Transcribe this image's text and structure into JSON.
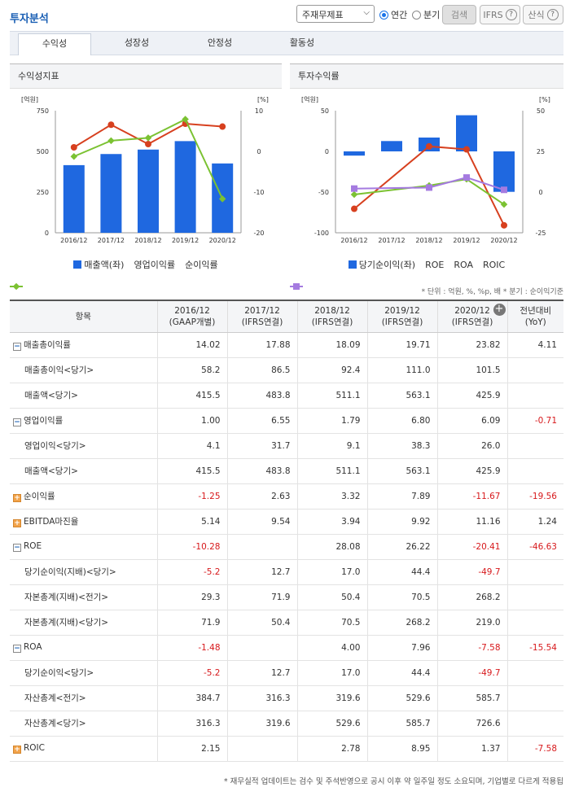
{
  "header": {
    "title": "투자분석",
    "select_value": "주재무제표",
    "radio_annual": "연간",
    "radio_quarter": "분기",
    "search_label": "검색",
    "ifrs_label": "IFRS",
    "formula_label": "산식"
  },
  "tabs": [
    "수익성",
    "성장성",
    "안정성",
    "활동성"
  ],
  "left_panel": {
    "title": "수익성지표",
    "legend": [
      "매출액(좌)",
      "영업이익률",
      "순이익률"
    ]
  },
  "right_panel": {
    "title": "투자수익률",
    "legend": [
      "당기순이익(좌)",
      "ROE",
      "ROA",
      "ROIC"
    ]
  },
  "chart_data": [
    {
      "type": "bar",
      "title": "수익성지표",
      "categories": [
        "2016/12",
        "2017/12",
        "2018/12",
        "2019/12",
        "2020/12"
      ],
      "left_axis": {
        "label": "[억원]",
        "ticks": [
          "750",
          "500",
          "250",
          "0"
        ],
        "range": [
          0,
          750
        ]
      },
      "right_axis": {
        "label": "[%]",
        "ticks": [
          "10",
          "0",
          "-10",
          "-20"
        ],
        "range": [
          -20,
          10
        ]
      },
      "series": [
        {
          "name": "매출액(좌)",
          "axis": "left",
          "kind": "bar",
          "color": "#1f68e0",
          "values": [
            415.5,
            483.8,
            511.1,
            563.1,
            425.9
          ]
        },
        {
          "name": "영업이익률",
          "axis": "right",
          "kind": "line",
          "color": "#d7401f",
          "values": [
            1.0,
            6.55,
            1.79,
            6.8,
            6.09
          ]
        },
        {
          "name": "순이익률",
          "axis": "right",
          "kind": "line",
          "color": "#7bc232",
          "values": [
            -1.25,
            2.63,
            3.32,
            7.89,
            -11.67
          ]
        }
      ]
    },
    {
      "type": "bar",
      "title": "투자수익률",
      "categories": [
        "2016/12",
        "2017/12",
        "2018/12",
        "2019/12",
        "2020/12"
      ],
      "left_axis": {
        "label": "[억원]",
        "ticks": [
          "50",
          "0",
          "-50",
          "-100"
        ],
        "range": [
          -100,
          50
        ]
      },
      "right_axis": {
        "label": "[%]",
        "ticks": [
          "50",
          "25",
          "0",
          "-25"
        ],
        "range": [
          -25,
          50
        ]
      },
      "series": [
        {
          "name": "당기순이익(좌)",
          "axis": "left",
          "kind": "bar",
          "color": "#1f68e0",
          "values": [
            -5.2,
            12.7,
            17.0,
            44.4,
            -49.7
          ]
        },
        {
          "name": "ROE",
          "axis": "right",
          "kind": "line",
          "color": "#d7401f",
          "values": [
            -10.28,
            null,
            28.08,
            26.22,
            -20.41
          ]
        },
        {
          "name": "ROA",
          "axis": "right",
          "kind": "line",
          "color": "#7bc232",
          "values": [
            -1.48,
            null,
            4.0,
            7.96,
            -7.58
          ]
        },
        {
          "name": "ROIC",
          "axis": "right",
          "kind": "line",
          "color": "#a57be0",
          "values": [
            2.15,
            null,
            2.78,
            8.95,
            1.37
          ]
        }
      ]
    }
  ],
  "unit_note": "* 단위 : 억원, %, %p, 배   * 분기 : 순이익기준",
  "table": {
    "headers": [
      {
        "l1": "항목",
        "l2": ""
      },
      {
        "l1": "2016/12",
        "l2": "(GAAP개별)"
      },
      {
        "l1": "2017/12",
        "l2": "(IFRS연결)"
      },
      {
        "l1": "2018/12",
        "l2": "(IFRS연결)"
      },
      {
        "l1": "2019/12",
        "l2": "(IFRS연결)"
      },
      {
        "l1": "2020/12",
        "l2": "(IFRS연결)"
      },
      {
        "l1": "전년대비",
        "l2": "(YoY)"
      }
    ],
    "rows": [
      {
        "label": "매출총이익률",
        "toggle": "minus",
        "sub": false,
        "values": [
          "14.02",
          "17.88",
          "18.09",
          "19.71",
          "23.82",
          "4.11"
        ]
      },
      {
        "label": "매출총이익<당기>",
        "toggle": "",
        "sub": true,
        "values": [
          "58.2",
          "86.5",
          "92.4",
          "111.0",
          "101.5",
          ""
        ]
      },
      {
        "label": "매출액<당기>",
        "toggle": "",
        "sub": true,
        "values": [
          "415.5",
          "483.8",
          "511.1",
          "563.1",
          "425.9",
          ""
        ]
      },
      {
        "label": "영업이익률",
        "toggle": "minus",
        "sub": false,
        "values": [
          "1.00",
          "6.55",
          "1.79",
          "6.80",
          "6.09",
          "-0.71"
        ]
      },
      {
        "label": "영업이익<당기>",
        "toggle": "",
        "sub": true,
        "values": [
          "4.1",
          "31.7",
          "9.1",
          "38.3",
          "26.0",
          ""
        ]
      },
      {
        "label": "매출액<당기>",
        "toggle": "",
        "sub": true,
        "values": [
          "415.5",
          "483.8",
          "511.1",
          "563.1",
          "425.9",
          ""
        ]
      },
      {
        "label": "순이익률",
        "toggle": "plus",
        "sub": false,
        "values": [
          "-1.25",
          "2.63",
          "3.32",
          "7.89",
          "-11.67",
          "-19.56"
        ]
      },
      {
        "label": "EBITDA마진율",
        "toggle": "plus",
        "sub": false,
        "values": [
          "5.14",
          "9.54",
          "3.94",
          "9.92",
          "11.16",
          "1.24"
        ]
      },
      {
        "label": "ROE",
        "toggle": "minus",
        "sub": false,
        "values": [
          "-10.28",
          "",
          "28.08",
          "26.22",
          "-20.41",
          "-46.63"
        ]
      },
      {
        "label": "당기순이익(지배)<당기>",
        "toggle": "",
        "sub": true,
        "values": [
          "-5.2",
          "12.7",
          "17.0",
          "44.4",
          "-49.7",
          ""
        ]
      },
      {
        "label": "자본총계(지배)<전기>",
        "toggle": "",
        "sub": true,
        "values": [
          "29.3",
          "71.9",
          "50.4",
          "70.5",
          "268.2",
          ""
        ]
      },
      {
        "label": "자본총계(지배)<당기>",
        "toggle": "",
        "sub": true,
        "values": [
          "71.9",
          "50.4",
          "70.5",
          "268.2",
          "219.0",
          ""
        ]
      },
      {
        "label": "ROA",
        "toggle": "minus",
        "sub": false,
        "values": [
          "-1.48",
          "",
          "4.00",
          "7.96",
          "-7.58",
          "-15.54"
        ]
      },
      {
        "label": "당기순이익<당기>",
        "toggle": "",
        "sub": true,
        "values": [
          "-5.2",
          "12.7",
          "17.0",
          "44.4",
          "-49.7",
          ""
        ]
      },
      {
        "label": "자산총계<전기>",
        "toggle": "",
        "sub": true,
        "values": [
          "384.7",
          "316.3",
          "319.6",
          "529.6",
          "585.7",
          ""
        ]
      },
      {
        "label": "자산총계<당기>",
        "toggle": "",
        "sub": true,
        "values": [
          "316.3",
          "319.6",
          "529.6",
          "585.7",
          "726.6",
          ""
        ]
      },
      {
        "label": "ROIC",
        "toggle": "plus",
        "sub": false,
        "values": [
          "2.15",
          "",
          "2.78",
          "8.95",
          "1.37",
          "-7.58"
        ]
      }
    ]
  },
  "footnote": "* 재무실적 업데이트는 검수 및 주석반영으로 공시 이후 약 일주일 정도 소요되며, 기업별로 다르게 적용됩"
}
